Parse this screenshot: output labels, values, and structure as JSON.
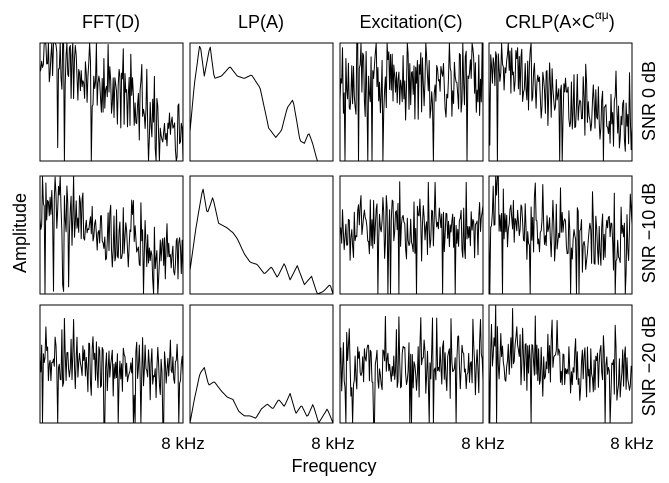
{
  "chart_data": {
    "type": "line",
    "layout": "small-multiples grid, 3 rows x 4 columns",
    "columns": [
      {
        "title_base": "FFT(D)",
        "title_sup": ""
      },
      {
        "title_base": "LP(A)",
        "title_sup": ""
      },
      {
        "title_base": "Excitation(C)",
        "title_sup": ""
      },
      {
        "title_base": "CRLP(A×C",
        "title_sup": "αμ",
        "title_close": ")"
      }
    ],
    "rows": [
      "SNR 0 dB",
      "SNR −10 dB",
      "SNR −20 dB"
    ],
    "x_tick_label": "8 kHz",
    "xlabel": "Frequency",
    "ylabel": "Amplitude",
    "x_range_khz": [
      0,
      8
    ],
    "y_range_normalized": [
      0,
      1
    ],
    "grid": false,
    "legend": "none",
    "series": [
      {
        "row": 0,
        "col": 0,
        "peaks": [
          [
            0.12,
            0.95
          ],
          [
            0.3,
            0.65
          ],
          [
            0.6,
            0.55
          ],
          [
            0.8,
            0.32
          ],
          [
            1.0,
            0.2
          ]
        ],
        "noise": 0.22,
        "seed": 11
      },
      {
        "row": 0,
        "col": 1,
        "smooth": [
          [
            0,
            0.25
          ],
          [
            0.03,
            0.65
          ],
          [
            0.07,
            1.0
          ],
          [
            0.1,
            0.72
          ],
          [
            0.14,
            0.98
          ],
          [
            0.17,
            0.7
          ],
          [
            0.22,
            0.72
          ],
          [
            0.28,
            0.8
          ],
          [
            0.33,
            0.72
          ],
          [
            0.38,
            0.7
          ],
          [
            0.43,
            0.73
          ],
          [
            0.49,
            0.62
          ],
          [
            0.55,
            0.28
          ],
          [
            0.6,
            0.2
          ],
          [
            0.64,
            0.26
          ],
          [
            0.68,
            0.45
          ],
          [
            0.72,
            0.52
          ],
          [
            0.74,
            0.38
          ],
          [
            0.77,
            0.17
          ],
          [
            0.8,
            0.15
          ],
          [
            0.83,
            0.24
          ],
          [
            0.86,
            0.14
          ],
          [
            0.89,
            0.0
          ],
          [
            1.0,
            0.0
          ]
        ]
      },
      {
        "row": 0,
        "col": 2,
        "peaks": [
          [
            0.0,
            0.72
          ],
          [
            0.5,
            0.7
          ],
          [
            1.0,
            0.68
          ]
        ],
        "noise": 0.28,
        "seed": 23
      },
      {
        "row": 0,
        "col": 3,
        "peaks": [
          [
            0.1,
            0.85
          ],
          [
            0.35,
            0.62
          ],
          [
            0.6,
            0.45
          ],
          [
            0.8,
            0.38
          ],
          [
            1.0,
            0.35
          ]
        ],
        "noise": 0.22,
        "seed": 37
      },
      {
        "row": 1,
        "col": 0,
        "peaks": [
          [
            0.1,
            0.75
          ],
          [
            0.35,
            0.55
          ],
          [
            0.6,
            0.45
          ],
          [
            0.8,
            0.38
          ],
          [
            1.0,
            0.32
          ]
        ],
        "noise": 0.2,
        "seed": 41
      },
      {
        "row": 1,
        "col": 1,
        "smooth": [
          [
            0,
            0.2
          ],
          [
            0.04,
            0.55
          ],
          [
            0.09,
            0.9
          ],
          [
            0.12,
            0.68
          ],
          [
            0.16,
            0.82
          ],
          [
            0.2,
            0.6
          ],
          [
            0.26,
            0.56
          ],
          [
            0.3,
            0.52
          ],
          [
            0.33,
            0.47
          ],
          [
            0.38,
            0.34
          ],
          [
            0.42,
            0.27
          ],
          [
            0.47,
            0.25
          ],
          [
            0.52,
            0.17
          ],
          [
            0.57,
            0.23
          ],
          [
            0.61,
            0.14
          ],
          [
            0.66,
            0.26
          ],
          [
            0.7,
            0.12
          ],
          [
            0.75,
            0.24
          ],
          [
            0.8,
            0.08
          ],
          [
            0.85,
            0.15
          ],
          [
            0.89,
            0.0
          ],
          [
            0.93,
            0.02
          ],
          [
            0.98,
            0.08
          ],
          [
            1.0,
            0.0
          ]
        ]
      },
      {
        "row": 1,
        "col": 2,
        "peaks": [
          [
            0.0,
            0.58
          ],
          [
            0.5,
            0.55
          ],
          [
            1.0,
            0.55
          ]
        ],
        "noise": 0.22,
        "seed": 53
      },
      {
        "row": 1,
        "col": 3,
        "peaks": [
          [
            0.05,
            0.7
          ],
          [
            0.3,
            0.55
          ],
          [
            0.6,
            0.48
          ],
          [
            1.0,
            0.45
          ]
        ],
        "noise": 0.22,
        "seed": 67
      },
      {
        "row": 2,
        "col": 0,
        "peaks": [
          [
            0.0,
            0.55
          ],
          [
            0.5,
            0.48
          ],
          [
            1.0,
            0.42
          ]
        ],
        "noise": 0.2,
        "seed": 71
      },
      {
        "row": 2,
        "col": 1,
        "smooth": [
          [
            0,
            0.0
          ],
          [
            0.03,
            0.2
          ],
          [
            0.07,
            0.42
          ],
          [
            0.1,
            0.47
          ],
          [
            0.13,
            0.32
          ],
          [
            0.17,
            0.35
          ],
          [
            0.22,
            0.27
          ],
          [
            0.26,
            0.22
          ],
          [
            0.3,
            0.2
          ],
          [
            0.34,
            0.1
          ],
          [
            0.38,
            0.06
          ],
          [
            0.42,
            0.06
          ],
          [
            0.46,
            0.04
          ],
          [
            0.5,
            0.12
          ],
          [
            0.54,
            0.16
          ],
          [
            0.58,
            0.12
          ],
          [
            0.62,
            0.2
          ],
          [
            0.66,
            0.14
          ],
          [
            0.7,
            0.25
          ],
          [
            0.74,
            0.08
          ],
          [
            0.78,
            0.15
          ],
          [
            0.82,
            0.05
          ],
          [
            0.86,
            0.16
          ],
          [
            0.9,
            0.0
          ],
          [
            0.96,
            0.12
          ],
          [
            1.0,
            0.0
          ]
        ]
      },
      {
        "row": 2,
        "col": 2,
        "peaks": [
          [
            0.0,
            0.52
          ],
          [
            0.5,
            0.5
          ],
          [
            1.0,
            0.48
          ]
        ],
        "noise": 0.22,
        "seed": 83
      },
      {
        "row": 2,
        "col": 3,
        "peaks": [
          [
            0.05,
            0.62
          ],
          [
            0.4,
            0.48
          ],
          [
            1.0,
            0.42
          ]
        ],
        "noise": 0.22,
        "seed": 97
      }
    ]
  }
}
